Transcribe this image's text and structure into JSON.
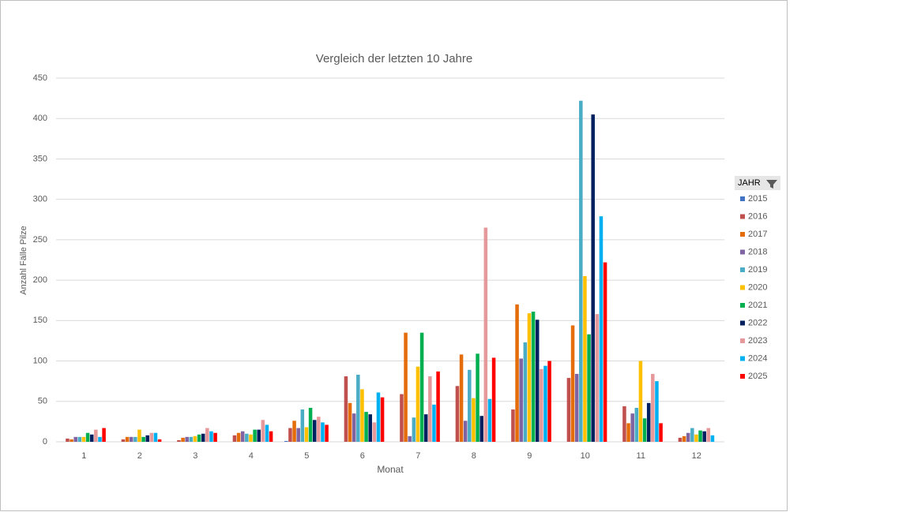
{
  "chart_data": {
    "type": "bar",
    "title": "Vergleich der letzten 10 Jahre",
    "x_label": "Monat",
    "y_label": "Anzahl Fälle Pilze",
    "legend_title": "JAHR",
    "legend_position": "right",
    "grid": true,
    "categories": [
      "1",
      "2",
      "3",
      "4",
      "5",
      "6",
      "7",
      "8",
      "9",
      "10",
      "11",
      "12"
    ],
    "ylim": [
      0,
      450
    ],
    "yticks": [
      0,
      50,
      100,
      150,
      200,
      250,
      300,
      350,
      400,
      450
    ],
    "series": [
      {
        "name": "2015",
        "color": "#4472c4",
        "values": [
          0,
          0,
          0,
          0,
          1,
          0,
          0,
          0,
          0,
          0,
          0,
          0
        ]
      },
      {
        "name": "2016",
        "color": "#c0504d",
        "values": [
          4,
          3,
          2,
          8,
          17,
          81,
          59,
          69,
          40,
          79,
          44,
          5
        ]
      },
      {
        "name": "2017",
        "color": "#e46c0a",
        "values": [
          3,
          6,
          5,
          11,
          26,
          48,
          135,
          108,
          170,
          144,
          23,
          7
        ]
      },
      {
        "name": "2018",
        "color": "#8064a2",
        "values": [
          6,
          6,
          6,
          13,
          17,
          35,
          7,
          26,
          103,
          84,
          35,
          11
        ]
      },
      {
        "name": "2019",
        "color": "#4bacc6",
        "values": [
          6,
          6,
          6,
          10,
          40,
          83,
          30,
          89,
          123,
          422,
          42,
          17
        ]
      },
      {
        "name": "2020",
        "color": "#ffc000",
        "values": [
          6,
          15,
          7,
          9,
          18,
          65,
          93,
          54,
          159,
          205,
          100,
          9
        ]
      },
      {
        "name": "2021",
        "color": "#00b050",
        "values": [
          11,
          6,
          9,
          15,
          42,
          37,
          135,
          109,
          161,
          133,
          29,
          14
        ]
      },
      {
        "name": "2022",
        "color": "#002060",
        "values": [
          9,
          8,
          10,
          15,
          27,
          34,
          34,
          32,
          151,
          405,
          48,
          13
        ]
      },
      {
        "name": "2023",
        "color": "#e6999a",
        "values": [
          15,
          11,
          17,
          27,
          31,
          24,
          81,
          265,
          90,
          158,
          84,
          17
        ]
      },
      {
        "name": "2024",
        "color": "#00b0f0",
        "values": [
          6,
          11,
          13,
          21,
          24,
          61,
          46,
          53,
          94,
          279,
          75,
          8
        ]
      },
      {
        "name": "2025",
        "color": "#ff0000",
        "values": [
          17,
          3,
          11,
          13,
          21,
          55,
          87,
          104,
          100,
          222,
          23,
          0
        ]
      }
    ]
  }
}
